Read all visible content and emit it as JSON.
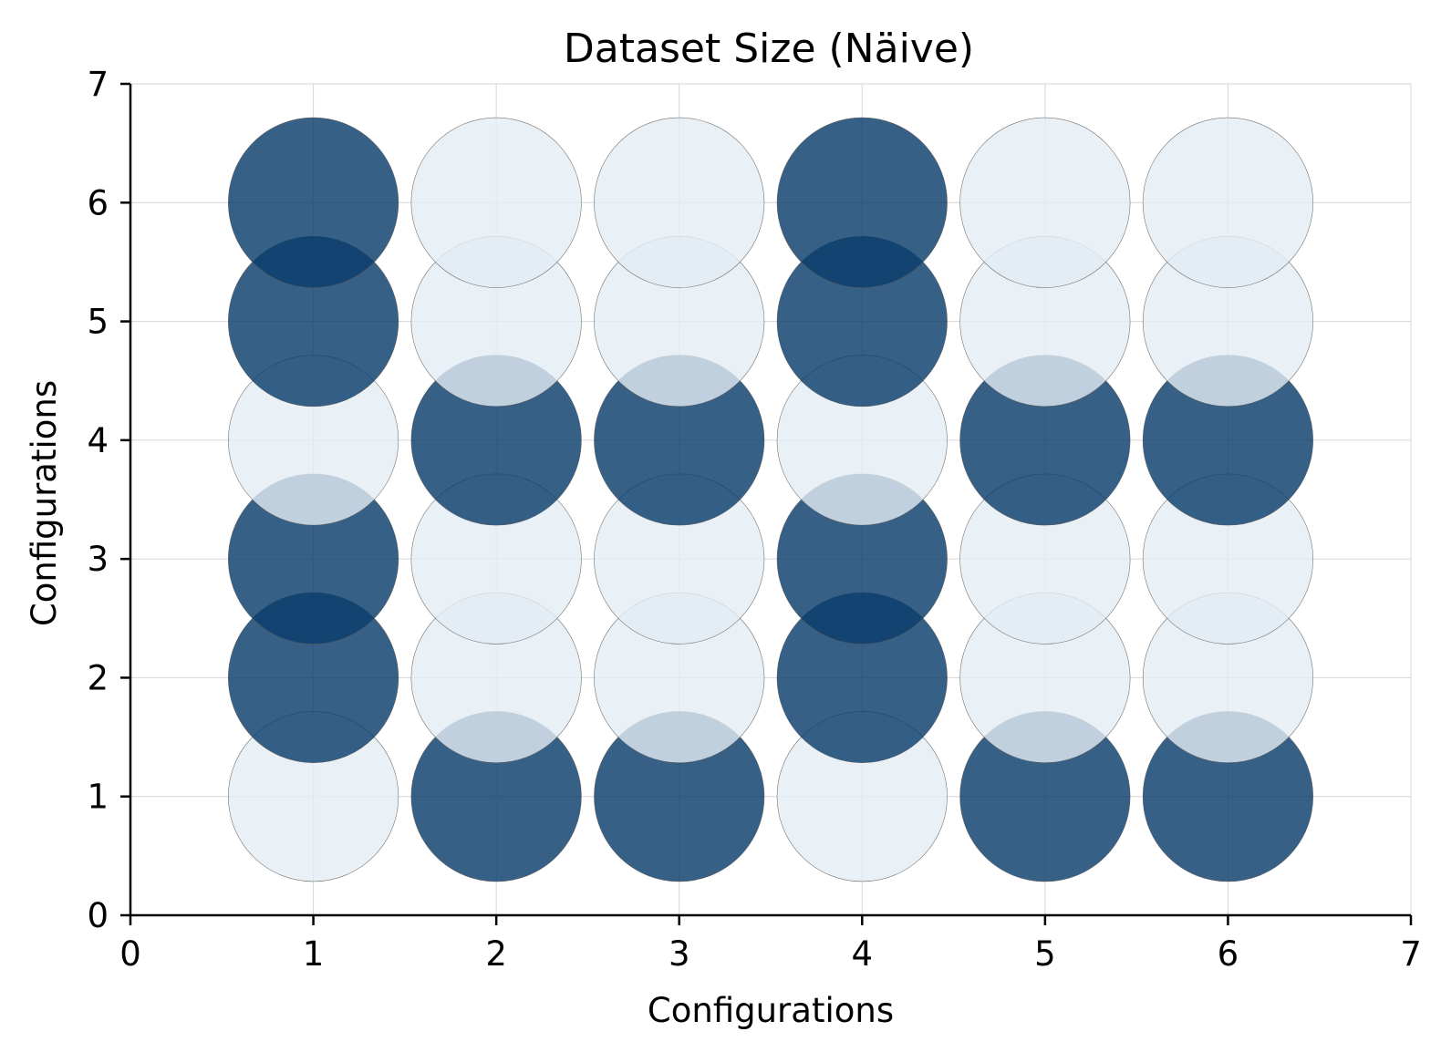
{
  "chart_data": {
    "type": "scatter",
    "title": "Dataset Size (Näive)",
    "xlabel": "Configurations",
    "ylabel": "Configurations",
    "xlim": [
      0,
      7
    ],
    "ylim": [
      0,
      7
    ],
    "xticks": [
      "0",
      "1",
      "2",
      "3",
      "4",
      "5",
      "6",
      "7"
    ],
    "yticks": [
      "0",
      "1",
      "2",
      "3",
      "4",
      "5",
      "6",
      "7"
    ],
    "grid": true,
    "colors": {
      "dark": "#0b3d6b",
      "light": "#e3ecf4",
      "edge": "#555555"
    },
    "points": [
      {
        "x": 1,
        "y": 1,
        "level": "light"
      },
      {
        "x": 1,
        "y": 2,
        "level": "dark"
      },
      {
        "x": 1,
        "y": 3,
        "level": "dark"
      },
      {
        "x": 1,
        "y": 4,
        "level": "light"
      },
      {
        "x": 1,
        "y": 5,
        "level": "dark"
      },
      {
        "x": 1,
        "y": 6,
        "level": "dark"
      },
      {
        "x": 2,
        "y": 1,
        "level": "dark"
      },
      {
        "x": 2,
        "y": 2,
        "level": "light"
      },
      {
        "x": 2,
        "y": 3,
        "level": "light"
      },
      {
        "x": 2,
        "y": 4,
        "level": "dark"
      },
      {
        "x": 2,
        "y": 5,
        "level": "light"
      },
      {
        "x": 2,
        "y": 6,
        "level": "light"
      },
      {
        "x": 3,
        "y": 1,
        "level": "dark"
      },
      {
        "x": 3,
        "y": 2,
        "level": "light"
      },
      {
        "x": 3,
        "y": 3,
        "level": "light"
      },
      {
        "x": 3,
        "y": 4,
        "level": "dark"
      },
      {
        "x": 3,
        "y": 5,
        "level": "light"
      },
      {
        "x": 3,
        "y": 6,
        "level": "light"
      },
      {
        "x": 4,
        "y": 1,
        "level": "light"
      },
      {
        "x": 4,
        "y": 2,
        "level": "dark"
      },
      {
        "x": 4,
        "y": 3,
        "level": "dark"
      },
      {
        "x": 4,
        "y": 4,
        "level": "light"
      },
      {
        "x": 4,
        "y": 5,
        "level": "dark"
      },
      {
        "x": 4,
        "y": 6,
        "level": "dark"
      },
      {
        "x": 5,
        "y": 1,
        "level": "dark"
      },
      {
        "x": 5,
        "y": 2,
        "level": "light"
      },
      {
        "x": 5,
        "y": 3,
        "level": "light"
      },
      {
        "x": 5,
        "y": 4,
        "level": "dark"
      },
      {
        "x": 5,
        "y": 5,
        "level": "light"
      },
      {
        "x": 5,
        "y": 6,
        "level": "light"
      },
      {
        "x": 6,
        "y": 1,
        "level": "dark"
      },
      {
        "x": 6,
        "y": 2,
        "level": "light"
      },
      {
        "x": 6,
        "y": 3,
        "level": "light"
      },
      {
        "x": 6,
        "y": 4,
        "level": "dark"
      },
      {
        "x": 6,
        "y": 5,
        "level": "light"
      },
      {
        "x": 6,
        "y": 6,
        "level": "light"
      }
    ]
  }
}
